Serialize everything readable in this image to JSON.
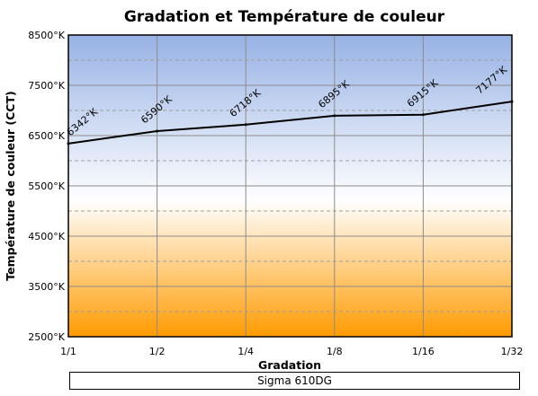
{
  "chart_data": {
    "type": "line",
    "title": "Gradation et Température de couleur",
    "xlabel": "Gradation",
    "ylabel": "Température de couleur  (CCT)",
    "categories": [
      "1/1",
      "1/2",
      "1/4",
      "1/8",
      "1/16",
      "1/32"
    ],
    "y_ticks": [
      "2500°K",
      "3500°K",
      "4500°K",
      "5500°K",
      "6500°K",
      "7500°K",
      "8500°K"
    ],
    "ylim": [
      2500,
      8500
    ],
    "grid": true,
    "series": [
      {
        "name": "Sigma 610DG",
        "values": [
          6342,
          6590,
          6718,
          6895,
          6915,
          7177
        ],
        "labels": [
          "6342°K",
          "6590°K",
          "6718°K",
          "6895°K",
          "6915°K",
          "7177°K"
        ]
      }
    ],
    "legend_position": "bottom",
    "background_gradient": [
      "#97b2e5",
      "#ffffff",
      "#ff9b00"
    ],
    "line_color": "#000000"
  }
}
